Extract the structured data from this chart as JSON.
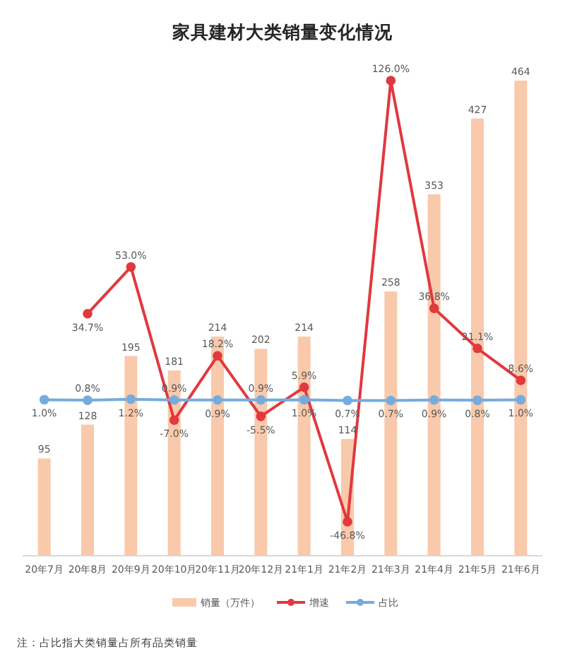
{
  "chart_data": {
    "type": "bar",
    "title": "家具建材大类销量变化情况",
    "categories": [
      "20年7月",
      "20年8月",
      "20年9月",
      "20年10月",
      "20年11月",
      "20年12月",
      "21年1月",
      "21年2月",
      "21年3月",
      "21年4月",
      "21年5月",
      "21年6月"
    ],
    "series": [
      {
        "name": "销量（万件）",
        "color": "#f9c9ab",
        "values": [
          95,
          128,
          195,
          181,
          214,
          202,
          214,
          114,
          258,
          353,
          427,
          464
        ],
        "value_labels": [
          "95",
          "128",
          "195",
          "181",
          "214",
          "202",
          "214",
          "114",
          "258",
          "353",
          "427",
          "464"
        ]
      },
      {
        "name": "增速",
        "type": "line",
        "axis": "y2",
        "color": "#e0393e",
        "values": [
          null,
          34.7,
          53.0,
          -7.0,
          18.2,
          -5.5,
          5.9,
          -46.8,
          126.0,
          36.8,
          21.1,
          8.6
        ],
        "value_labels": [
          null,
          "34.7%",
          "53.0%",
          "-7.0%",
          "18.2%",
          "-5.5%",
          "5.9%",
          "-46.8%",
          "126.0%",
          "36.8%",
          "21.1%",
          "8.6%"
        ]
      },
      {
        "name": "占比",
        "type": "line",
        "axis": "y2",
        "color": "#74acde",
        "values": [
          1.0,
          0.8,
          1.2,
          0.9,
          0.9,
          0.9,
          1.0,
          0.7,
          0.7,
          0.9,
          0.8,
          1.0
        ],
        "value_labels": [
          "1.0%",
          "0.8%",
          "1.2%",
          "0.9%",
          "0.9%",
          "0.9%",
          "1.0%",
          "0.7%",
          "0.7%",
          "0.9%",
          "0.8%",
          "1.0%"
        ]
      }
    ],
    "tick_labels": "x",
    "marker": "circle",
    "legend": "bottom",
    "annotations": [
      "注：占比指大类销量占所有品类销量"
    ]
  }
}
